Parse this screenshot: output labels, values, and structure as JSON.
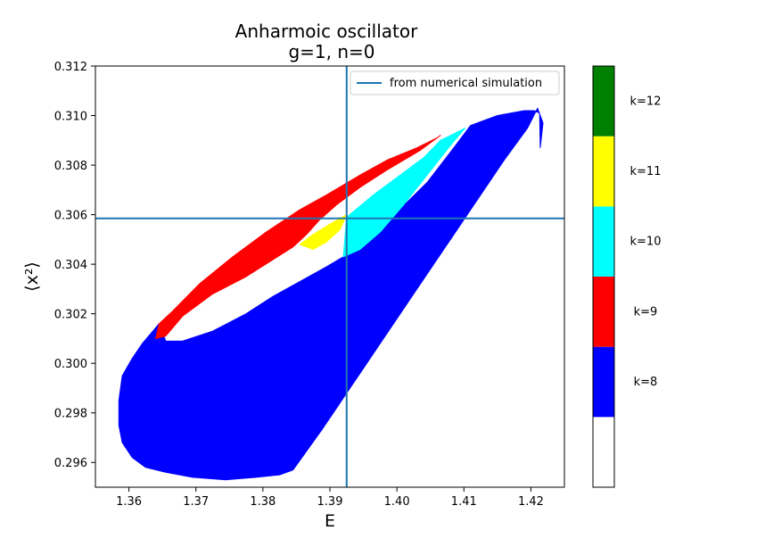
{
  "chart_data": {
    "type": "region",
    "title": "Anharmoic oscillator",
    "subtitle": "g=1, n=0",
    "xlabel": "E",
    "ylabel": "⟨x²⟩",
    "xlim": [
      1.355,
      1.425
    ],
    "ylim": [
      0.295,
      0.312
    ],
    "xticks": [
      "1.36",
      "1.37",
      "1.38",
      "1.39",
      "1.40",
      "1.41",
      "1.42"
    ],
    "yticks": [
      "0.296",
      "0.298",
      "0.300",
      "0.302",
      "0.304",
      "0.306",
      "0.308",
      "0.310",
      "0.312"
    ],
    "grid": false,
    "legend_position": "top-right",
    "reference": {
      "label": "from numerical simulation",
      "E": 1.3925,
      "x2": 0.30585,
      "color": "#1f77b4"
    },
    "regions": [
      {
        "k": 8,
        "color": "#0000ff",
        "points": [
          [
            1.3645,
            0.3016
          ],
          [
            1.362,
            0.3008
          ],
          [
            1.3605,
            0.3002
          ],
          [
            1.359,
            0.2995
          ],
          [
            1.3585,
            0.2985
          ],
          [
            1.3585,
            0.2975
          ],
          [
            1.359,
            0.2968
          ],
          [
            1.3605,
            0.2962
          ],
          [
            1.3625,
            0.2958
          ],
          [
            1.3655,
            0.2956
          ],
          [
            1.3695,
            0.2954
          ],
          [
            1.3745,
            0.2953
          ],
          [
            1.379,
            0.2954
          ],
          [
            1.3825,
            0.2955
          ],
          [
            1.3845,
            0.2957
          ],
          [
            1.389,
            0.2974
          ],
          [
            1.395,
            0.2998
          ],
          [
            1.4015,
            0.3024
          ],
          [
            1.4075,
            0.3048
          ],
          [
            1.4125,
            0.3068
          ],
          [
            1.416,
            0.3082
          ],
          [
            1.4195,
            0.3095
          ],
          [
            1.421,
            0.3103
          ],
          [
            1.4218,
            0.3097
          ],
          [
            1.4214,
            0.3087
          ],
          [
            1.4213,
            0.3101
          ],
          [
            1.4205,
            0.3102
          ],
          [
            1.419,
            0.3102
          ],
          [
            1.415,
            0.31
          ],
          [
            1.411,
            0.3096
          ],
          [
            1.4085,
            0.3087
          ],
          [
            1.4045,
            0.3073
          ],
          [
            1.4,
            0.3061
          ],
          [
            1.3955,
            0.305
          ],
          [
            1.392,
            0.3043
          ],
          [
            1.3895,
            0.3039
          ],
          [
            1.3855,
            0.3033
          ],
          [
            1.3815,
            0.3027
          ],
          [
            1.3775,
            0.302
          ],
          [
            1.3725,
            0.3013
          ],
          [
            1.368,
            0.3009
          ],
          [
            1.3655,
            0.3009
          ]
        ]
      },
      {
        "k": 9,
        "color": "#ff0000",
        "points": [
          [
            1.3645,
            0.3016
          ],
          [
            1.3665,
            0.3021
          ],
          [
            1.3705,
            0.3032
          ],
          [
            1.3755,
            0.3043
          ],
          [
            1.3805,
            0.3053
          ],
          [
            1.3855,
            0.3062
          ],
          [
            1.3895,
            0.3068
          ],
          [
            1.3945,
            0.3076
          ],
          [
            1.3985,
            0.3082
          ],
          [
            1.403,
            0.3087
          ],
          [
            1.406,
            0.3091
          ],
          [
            1.4065,
            0.3092
          ],
          [
            1.4035,
            0.3086
          ],
          [
            1.3985,
            0.3078
          ],
          [
            1.3945,
            0.3071
          ],
          [
            1.391,
            0.3064
          ],
          [
            1.3885,
            0.3058
          ],
          [
            1.3865,
            0.3052
          ],
          [
            1.3845,
            0.3047
          ],
          [
            1.381,
            0.3041
          ],
          [
            1.3775,
            0.3035
          ],
          [
            1.3725,
            0.3028
          ],
          [
            1.368,
            0.3019
          ],
          [
            1.3655,
            0.3011
          ],
          [
            1.364,
            0.301
          ]
        ]
      },
      {
        "k": 10,
        "color": "#00ffff",
        "points": [
          [
            1.3925,
            0.3059
          ],
          [
            1.3965,
            0.3068
          ],
          [
            1.4005,
            0.3076
          ],
          [
            1.404,
            0.3083
          ],
          [
            1.4065,
            0.309
          ],
          [
            1.4095,
            0.3094
          ],
          [
            1.4102,
            0.3095
          ],
          [
            1.408,
            0.3088
          ],
          [
            1.4045,
            0.3076
          ],
          [
            1.401,
            0.3064
          ],
          [
            1.3975,
            0.3053
          ],
          [
            1.3945,
            0.3046
          ],
          [
            1.392,
            0.3043
          ]
        ]
      },
      {
        "k": 11,
        "color": "#ffff00",
        "points": [
          [
            1.3855,
            0.3048
          ],
          [
            1.3875,
            0.3052
          ],
          [
            1.3905,
            0.3057
          ],
          [
            1.3925,
            0.306
          ],
          [
            1.3915,
            0.3054
          ],
          [
            1.3895,
            0.3049
          ],
          [
            1.3875,
            0.3046
          ]
        ]
      }
    ],
    "colorbar": {
      "levels": [
        {
          "label": "",
          "color": "#ffffff"
        },
        {
          "label": "k=8",
          "color": "#0000ff"
        },
        {
          "label": "k=9",
          "color": "#ff0000"
        },
        {
          "label": "k=10",
          "color": "#00ffff"
        },
        {
          "label": "k=11",
          "color": "#ffff00"
        },
        {
          "label": "k=12",
          "color": "#008000"
        }
      ]
    }
  }
}
